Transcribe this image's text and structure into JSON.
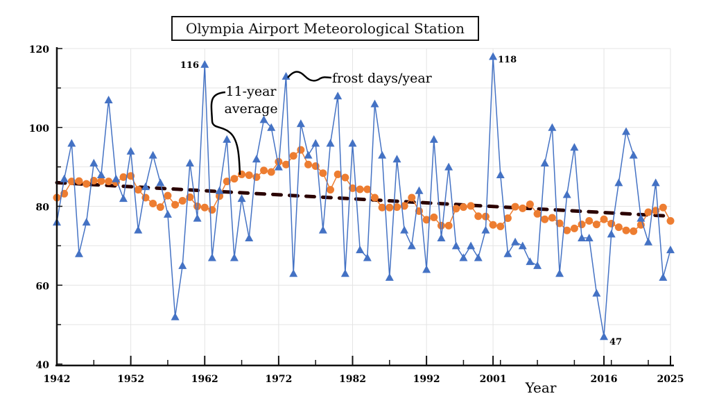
{
  "chart_data": {
    "type": "line",
    "title": "Olympia Airport Meteorological Station",
    "xlabel": "Year",
    "ylabel": "",
    "xlim": [
      1942,
      2025
    ],
    "ylim": [
      40,
      120
    ],
    "x_tick_labels": [
      "1942",
      "1952",
      "1962",
      "1972",
      "1982",
      "1992",
      "2001",
      "2016",
      "2025"
    ],
    "y_tick_labels": [
      "40",
      "60",
      "80",
      "100",
      "120"
    ],
    "grid": true,
    "colors": {
      "frost": "#4472c4",
      "average": "#ed7d31",
      "trend": "#2a0000"
    },
    "x_start_year": 1942,
    "series": [
      {
        "name": "frost days/year",
        "marker": "triangle",
        "values": [
          76,
          87,
          96,
          68,
          76,
          91,
          88,
          107,
          87,
          82,
          94,
          74,
          85,
          93,
          86,
          78,
          52,
          65,
          91,
          77,
          116,
          67,
          84,
          97,
          67,
          82,
          72,
          92,
          102,
          100,
          90,
          113,
          63,
          101,
          93,
          96,
          74,
          96,
          108,
          63,
          96,
          69,
          67,
          106,
          93,
          62,
          92,
          74,
          70,
          84,
          64,
          97,
          72,
          90,
          70,
          67,
          70,
          67,
          74,
          118,
          88,
          68,
          71,
          70,
          66,
          65,
          91,
          100,
          63,
          83,
          95,
          72,
          72,
          58,
          47,
          73,
          86,
          99,
          93,
          77,
          71,
          86,
          62,
          69
        ]
      },
      {
        "name": "11-year average",
        "marker": "circle",
        "values": [
          82.2,
          83.2,
          86.3,
          86.4,
          85.7,
          86.5,
          86.4,
          86.3,
          86.1,
          87.4,
          87.7,
          84.2,
          82.2,
          80.7,
          79.8,
          82.7,
          80.4,
          81.4,
          82.3,
          80.0,
          79.7,
          79.1,
          82.6,
          86.3,
          87.0,
          88.1,
          87.9,
          87.4,
          89.1,
          88.7,
          91.3,
          90.6,
          92.8,
          94.3,
          90.6,
          90.2,
          88.4,
          84.2,
          88.1,
          87.3,
          84.6,
          84.3,
          84.3,
          82.2,
          79.7,
          79.7,
          79.8,
          80.1,
          82.2,
          78.8,
          76.6,
          77.2,
          75.1,
          75.1,
          79.4,
          79.8,
          80.1,
          77.5,
          77.4,
          75.3,
          74.9,
          77.0,
          79.9,
          79.5,
          80.5,
          78.1,
          76.7,
          77.1,
          75.7,
          73.9,
          74.4,
          75.4,
          76.3,
          75.4,
          76.7,
          75.6,
          74.7,
          73.9,
          73.7,
          75.3,
          78.5,
          78.9,
          79.7,
          76.3
        ]
      },
      {
        "name": "trend",
        "style": "dashed",
        "x": [
          1942,
          2025
        ],
        "values": [
          86,
          77.5
        ]
      }
    ],
    "annotations": [
      {
        "text": "116",
        "x": 1962,
        "y": 116
      },
      {
        "text": "118",
        "x": 2001,
        "y": 118
      },
      {
        "text": "47",
        "x": 2016,
        "y": 47
      },
      {
        "text": "11-year average",
        "line1": "11-year",
        "line2": "average"
      },
      {
        "text": "frost days/year"
      }
    ]
  }
}
